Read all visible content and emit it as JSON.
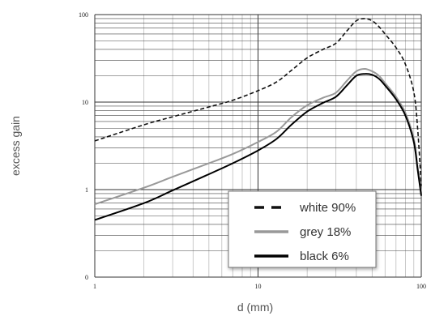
{
  "chart_data": {
    "type": "line",
    "xscale": "log",
    "yscale": "log",
    "xlim": [
      1,
      100
    ],
    "ylim": [
      0.1,
      100
    ],
    "xticks": [
      {
        "value": 1,
        "label": "1"
      },
      {
        "value": 10,
        "label": "10"
      },
      {
        "value": 100,
        "label": "100"
      }
    ],
    "yticks": [
      {
        "value": 0.1,
        "label": "0"
      },
      {
        "value": 1,
        "label": "1"
      },
      {
        "value": 10,
        "label": "10"
      },
      {
        "value": 100,
        "label": "100"
      }
    ],
    "xlabel": "d (mm)",
    "ylabel": "excess gain",
    "grid": true,
    "legend_position": "bottom-right",
    "series": [
      {
        "name": "white 90%",
        "color": "#111111",
        "dash": "dashed",
        "points": [
          [
            1,
            3.6
          ],
          [
            2,
            5.5
          ],
          [
            3,
            6.8
          ],
          [
            5,
            8.8
          ],
          [
            7,
            10.5
          ],
          [
            10,
            13.5
          ],
          [
            13,
            17
          ],
          [
            16,
            23
          ],
          [
            20,
            32
          ],
          [
            25,
            40
          ],
          [
            30,
            47
          ],
          [
            35,
            65
          ],
          [
            40,
            85
          ],
          [
            45,
            90
          ],
          [
            50,
            85
          ],
          [
            55,
            73
          ],
          [
            60,
            60
          ],
          [
            70,
            42
          ],
          [
            80,
            27
          ],
          [
            90,
            13
          ],
          [
            95,
            5
          ],
          [
            100,
            1.1
          ]
        ]
      },
      {
        "name": "grey 18%",
        "color": "#999999",
        "dash": "solid",
        "points": [
          [
            1,
            0.68
          ],
          [
            2,
            1.05
          ],
          [
            3,
            1.4
          ],
          [
            5,
            2.0
          ],
          [
            7,
            2.55
          ],
          [
            10,
            3.5
          ],
          [
            13,
            4.6
          ],
          [
            16,
            6.7
          ],
          [
            20,
            9.2
          ],
          [
            25,
            11.2
          ],
          [
            30,
            12.8
          ],
          [
            35,
            17.5
          ],
          [
            40,
            22.5
          ],
          [
            45,
            24
          ],
          [
            50,
            22.5
          ],
          [
            55,
            20
          ],
          [
            60,
            16.5
          ],
          [
            70,
            11.5
          ],
          [
            80,
            7.5
          ],
          [
            90,
            3.8
          ],
          [
            95,
            1.8
          ],
          [
            100,
            0.9
          ]
        ]
      },
      {
        "name": "black 6%",
        "color": "#000000",
        "dash": "solid",
        "points": [
          [
            1,
            0.45
          ],
          [
            2,
            0.7
          ],
          [
            3,
            0.98
          ],
          [
            5,
            1.5
          ],
          [
            7,
            2.0
          ],
          [
            10,
            2.8
          ],
          [
            13,
            3.8
          ],
          [
            16,
            5.5
          ],
          [
            20,
            7.8
          ],
          [
            25,
            9.8
          ],
          [
            30,
            11.5
          ],
          [
            35,
            15.5
          ],
          [
            40,
            20
          ],
          [
            45,
            21
          ],
          [
            50,
            20.5
          ],
          [
            55,
            18.5
          ],
          [
            60,
            15.5
          ],
          [
            70,
            10.8
          ],
          [
            80,
            7
          ],
          [
            90,
            3.5
          ],
          [
            95,
            1.7
          ],
          [
            100,
            0.85
          ]
        ]
      }
    ]
  }
}
